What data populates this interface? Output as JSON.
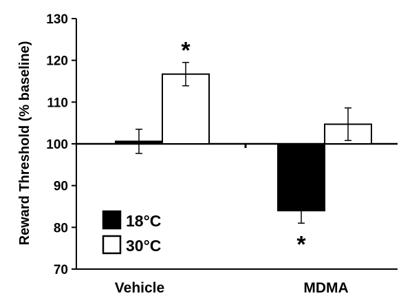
{
  "chart_data": {
    "type": "bar",
    "title": "",
    "xlabel": "",
    "ylabel": "Reward Threshold (% baseline)",
    "ylim": [
      70,
      130
    ],
    "yticks": [
      "70",
      "80",
      "90",
      "100",
      "110",
      "120",
      "130"
    ],
    "baseline": 100,
    "categories": [
      "Vehicle",
      "MDMA"
    ],
    "series": [
      {
        "name": "18°C",
        "color": "#000000",
        "values": [
          100.6,
          84.0
        ],
        "errors": [
          2.9,
          3.0
        ]
      },
      {
        "name": "30°C",
        "color": "#ffffff",
        "values": [
          116.7,
          104.7
        ],
        "errors": [
          2.8,
          3.9
        ]
      }
    ],
    "annotations": [
      {
        "category": "Vehicle",
        "series": "30°C",
        "text": "*"
      },
      {
        "category": "MDMA",
        "series": "18°C",
        "text": "*"
      }
    ],
    "legend_position": "bottom-left",
    "grid": false
  }
}
